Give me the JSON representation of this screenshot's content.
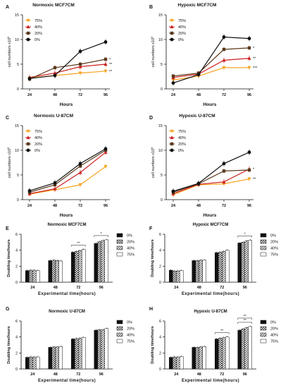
{
  "chart_data": [
    {
      "panel": "A",
      "title": "Normoxic MCF7CM",
      "type": "line",
      "xlabel": "Hours",
      "ylabel": "cell numbers x10",
      "categories": [
        "24",
        "48",
        "72",
        "96"
      ],
      "ylim": [
        0,
        15
      ],
      "yticks": [
        0,
        5,
        10,
        15
      ],
      "series": [
        {
          "name": "75%",
          "values": [
            2.2,
            2.7,
            3.2,
            3.6
          ],
          "color": "#f5a623",
          "marker": "tri-down",
          "stars": "**"
        },
        {
          "name": "40%",
          "values": [
            2.3,
            3.2,
            4.5,
            5.0
          ],
          "color": "#cc1f1f",
          "marker": "tri-up",
          "stars": "**"
        },
        {
          "name": "20%",
          "values": [
            2.0,
            4.3,
            5.0,
            6.0
          ],
          "color": "#5c3a1e",
          "marker": "square",
          "stars": "*"
        },
        {
          "name": "0%",
          "values": [
            2.1,
            2.7,
            7.6,
            9.5
          ],
          "color": "#111111",
          "marker": "circle",
          "stars": ""
        }
      ],
      "annotations": [
        "**",
        "*",
        "**",
        "*"
      ]
    },
    {
      "panel": "B",
      "title": "Hypoxic MCF7CM",
      "type": "line",
      "xlabel": "Hours",
      "ylabel": "cell numbers x10",
      "categories": [
        "24",
        "48",
        "72",
        "96"
      ],
      "ylim": [
        0,
        15
      ],
      "yticks": [
        0,
        5,
        10,
        15
      ],
      "series": [
        {
          "name": "75%",
          "values": [
            1.8,
            2.6,
            4.3,
            4.3
          ],
          "color": "#f5a623",
          "marker": "tri-down",
          "stars": "***"
        },
        {
          "name": "40%",
          "values": [
            2.3,
            3.0,
            5.8,
            6.2
          ],
          "color": "#cc1f1f",
          "marker": "tri-up",
          "stars": "**"
        },
        {
          "name": "20%",
          "values": [
            2.6,
            3.2,
            8.0,
            8.3
          ],
          "color": "#5c3a1e",
          "marker": "square",
          "stars": "*"
        },
        {
          "name": "0%",
          "values": [
            1.2,
            2.9,
            10.5,
            10.2
          ],
          "color": "#111111",
          "marker": "circle",
          "stars": ""
        }
      ],
      "annotations": [
        "***",
        "**",
        "*",
        "***"
      ]
    },
    {
      "panel": "C",
      "title": "Normoxic U-87CM",
      "type": "line",
      "xlabel": "Hours",
      "ylabel": "cell numbers x10",
      "categories": [
        "24",
        "48",
        "72",
        "96"
      ],
      "ylim": [
        0,
        15
      ],
      "yticks": [
        0,
        5,
        10,
        15
      ],
      "series": [
        {
          "name": "75%",
          "values": [
            1.1,
            2.0,
            3.0,
            6.7
          ],
          "color": "#f5a623",
          "marker": "tri-down",
          "stars": ""
        },
        {
          "name": "40%",
          "values": [
            1.2,
            2.2,
            5.5,
            9.6
          ],
          "color": "#cc1f1f",
          "marker": "tri-up",
          "stars": ""
        },
        {
          "name": "20%",
          "values": [
            1.5,
            3.0,
            6.8,
            10.0
          ],
          "color": "#5c3a1e",
          "marker": "square",
          "stars": ""
        },
        {
          "name": "0%",
          "values": [
            1.8,
            3.4,
            7.3,
            10.3
          ],
          "color": "#111111",
          "marker": "circle",
          "stars": ""
        }
      ],
      "annotations": []
    },
    {
      "panel": "D",
      "title": "Hypoxic U-87CM",
      "type": "line",
      "xlabel": "Hours",
      "ylabel": "cell numbers x10",
      "categories": [
        "24",
        "48",
        "72",
        "96"
      ],
      "ylim": [
        0,
        15
      ],
      "yticks": [
        0,
        5,
        10,
        15
      ],
      "series": [
        {
          "name": "75%",
          "values": [
            1.0,
            3.0,
            3.2,
            4.2
          ],
          "color": "#f5a623",
          "marker": "tri-down",
          "stars": "**"
        },
        {
          "name": "40%",
          "values": [
            1.2,
            3.1,
            3.6,
            6.2
          ],
          "color": "#cc1f1f",
          "marker": "tri-up",
          "stars": "*"
        },
        {
          "name": "20%",
          "values": [
            1.5,
            3.2,
            5.8,
            6.0
          ],
          "color": "#5c3a1e",
          "marker": "square",
          "stars": ""
        },
        {
          "name": "0%",
          "values": [
            1.7,
            3.3,
            7.3,
            9.6
          ],
          "color": "#111111",
          "marker": "circle",
          "stars": ""
        }
      ],
      "annotations": [
        "*",
        "*",
        "**"
      ]
    },
    {
      "panel": "E",
      "title": "Normoxic MCF7CM",
      "type": "bar",
      "xlabel": "Experimental time(hours)",
      "ylabel": "Doubling time/hours",
      "categories": [
        "24",
        "48",
        "72",
        "96"
      ],
      "ylim": [
        0,
        6
      ],
      "yticks": [
        0,
        2,
        4,
        6
      ],
      "series": [
        {
          "name": "0%",
          "values": [
            1.45,
            2.7,
            3.75,
            4.85
          ],
          "fill": "black"
        },
        {
          "name": "20%",
          "values": [
            1.5,
            2.75,
            3.85,
            5.05
          ],
          "fill": "check"
        },
        {
          "name": "40%",
          "values": [
            1.5,
            2.7,
            3.95,
            5.2
          ],
          "fill": "hatch"
        },
        {
          "name": "75%",
          "values": [
            1.45,
            2.65,
            4.1,
            5.3
          ],
          "fill": "white"
        }
      ],
      "annotations": [
        "*",
        "**"
      ]
    },
    {
      "panel": "F",
      "title": "Hypoxic MCF7CM",
      "type": "bar",
      "xlabel": "Experimental time(hours)",
      "ylabel": "Doubling time/hours",
      "categories": [
        "24",
        "48",
        "72",
        "96"
      ],
      "ylim": [
        0,
        6
      ],
      "yticks": [
        0,
        2,
        4,
        6
      ],
      "series": [
        {
          "name": "0%",
          "values": [
            1.5,
            2.7,
            3.7,
            4.9
          ],
          "fill": "black"
        },
        {
          "name": "20%",
          "values": [
            1.4,
            2.7,
            3.75,
            5.0
          ],
          "fill": "check"
        },
        {
          "name": "40%",
          "values": [
            1.4,
            2.75,
            3.85,
            5.15
          ],
          "fill": "hatch"
        },
        {
          "name": "75%",
          "values": [
            1.45,
            2.75,
            4.0,
            5.25
          ],
          "fill": "white"
        }
      ],
      "annotations": [
        "*"
      ]
    },
    {
      "panel": "G",
      "title": "Normoxic U-87CM",
      "type": "bar",
      "xlabel": "Experimental time(hours)",
      "ylabel": "Doubling time/hours",
      "categories": [
        "24",
        "48",
        "72",
        "96"
      ],
      "ylim": [
        0,
        6
      ],
      "yticks": [
        0,
        2,
        4,
        6
      ],
      "series": [
        {
          "name": "0%",
          "values": [
            1.45,
            2.7,
            3.75,
            4.85
          ],
          "fill": "black"
        },
        {
          "name": "20%",
          "values": [
            1.5,
            2.75,
            3.8,
            4.9
          ],
          "fill": "check"
        },
        {
          "name": "40%",
          "values": [
            1.5,
            2.75,
            3.85,
            4.9
          ],
          "fill": "hatch"
        },
        {
          "name": "75%",
          "values": [
            1.5,
            2.8,
            3.95,
            5.05
          ],
          "fill": "white"
        }
      ],
      "annotations": []
    },
    {
      "panel": "H",
      "title": "Hypoxic U-87CM",
      "type": "bar",
      "xlabel": "Experimental time(hours)",
      "ylabel": "Doubling time/hours",
      "categories": [
        "24",
        "48",
        "72",
        "96"
      ],
      "ylim": [
        0,
        6
      ],
      "yticks": [
        0,
        2,
        4,
        6
      ],
      "series": [
        {
          "name": "0%",
          "values": [
            1.45,
            2.7,
            3.75,
            4.85
          ],
          "fill": "black"
        },
        {
          "name": "20%",
          "values": [
            1.5,
            2.7,
            3.85,
            5.0
          ],
          "fill": "check"
        },
        {
          "name": "40%",
          "values": [
            1.5,
            2.75,
            3.9,
            5.15
          ],
          "fill": "hatch"
        },
        {
          "name": "75%",
          "values": [
            1.55,
            2.8,
            4.0,
            5.3
          ],
          "fill": "white"
        }
      ],
      "annotations": [
        "**",
        "**",
        "**"
      ]
    }
  ],
  "ylabel_superscript": "5"
}
